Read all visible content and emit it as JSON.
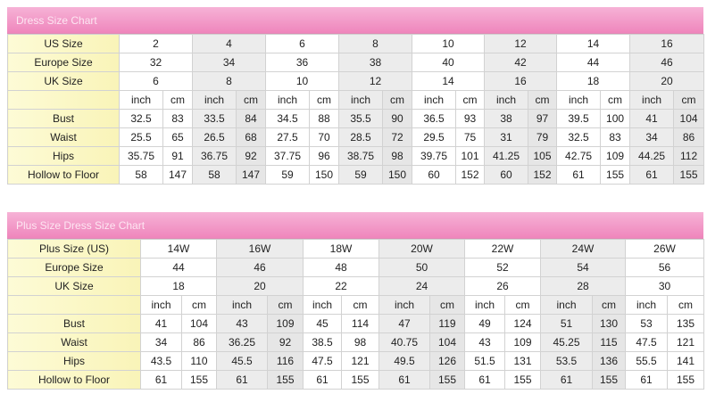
{
  "tables": [
    {
      "title": "Dress Size Chart",
      "size_rows": [
        {
          "label": "US Size",
          "values": [
            "2",
            "4",
            "6",
            "8",
            "10",
            "12",
            "14",
            "16"
          ]
        },
        {
          "label": "Europe Size",
          "values": [
            "32",
            "34",
            "36",
            "38",
            "40",
            "42",
            "44",
            "46"
          ]
        },
        {
          "label": "UK Size",
          "values": [
            "6",
            "8",
            "10",
            "12",
            "14",
            "16",
            "18",
            "20"
          ]
        }
      ],
      "unit_labels": [
        "inch",
        "cm"
      ],
      "measure_rows": [
        {
          "label": "Bust",
          "values": [
            "32.5",
            "83",
            "33.5",
            "84",
            "34.5",
            "88",
            "35.5",
            "90",
            "36.5",
            "93",
            "38",
            "97",
            "39.5",
            "100",
            "41",
            "104"
          ]
        },
        {
          "label": "Waist",
          "values": [
            "25.5",
            "65",
            "26.5",
            "68",
            "27.5",
            "70",
            "28.5",
            "72",
            "29.5",
            "75",
            "31",
            "79",
            "32.5",
            "83",
            "34",
            "86"
          ]
        },
        {
          "label": "Hips",
          "values": [
            "35.75",
            "91",
            "36.75",
            "92",
            "37.75",
            "96",
            "38.75",
            "98",
            "39.75",
            "101",
            "41.25",
            "105",
            "42.75",
            "109",
            "44.25",
            "112"
          ]
        },
        {
          "label": "Hollow to Floor",
          "values": [
            "58",
            "147",
            "58",
            "147",
            "59",
            "150",
            "59",
            "150",
            "60",
            "152",
            "60",
            "152",
            "61",
            "155",
            "61",
            "155"
          ]
        }
      ]
    },
    {
      "title": "Plus Size Dress Size Chart",
      "size_rows": [
        {
          "label": "Plus Size (US)",
          "values": [
            "14W",
            "16W",
            "18W",
            "20W",
            "22W",
            "24W",
            "26W"
          ]
        },
        {
          "label": "Europe Size",
          "values": [
            "44",
            "46",
            "48",
            "50",
            "52",
            "54",
            "56"
          ]
        },
        {
          "label": "UK Size",
          "values": [
            "18",
            "20",
            "22",
            "24",
            "26",
            "28",
            "30"
          ]
        }
      ],
      "unit_labels": [
        "inch",
        "cm"
      ],
      "measure_rows": [
        {
          "label": "Bust",
          "values": [
            "41",
            "104",
            "43",
            "109",
            "45",
            "114",
            "47",
            "119",
            "49",
            "124",
            "51",
            "130",
            "53",
            "135"
          ]
        },
        {
          "label": "Waist",
          "values": [
            "34",
            "86",
            "36.25",
            "92",
            "38.5",
            "98",
            "40.75",
            "104",
            "43",
            "109",
            "45.25",
            "115",
            "47.5",
            "121"
          ]
        },
        {
          "label": "Hips",
          "values": [
            "43.5",
            "110",
            "45.5",
            "116",
            "47.5",
            "121",
            "49.5",
            "126",
            "51.5",
            "131",
            "53.5",
            "136",
            "55.5",
            "141"
          ]
        },
        {
          "label": "Hollow to Floor",
          "values": [
            "61",
            "155",
            "61",
            "155",
            "61",
            "155",
            "61",
            "155",
            "61",
            "155",
            "61",
            "155",
            "61",
            "155"
          ]
        }
      ]
    }
  ],
  "colors": {
    "header_pink": "#ef86bc",
    "label_yellow": "#f9f4b8",
    "alt_gray": "#ececec"
  }
}
